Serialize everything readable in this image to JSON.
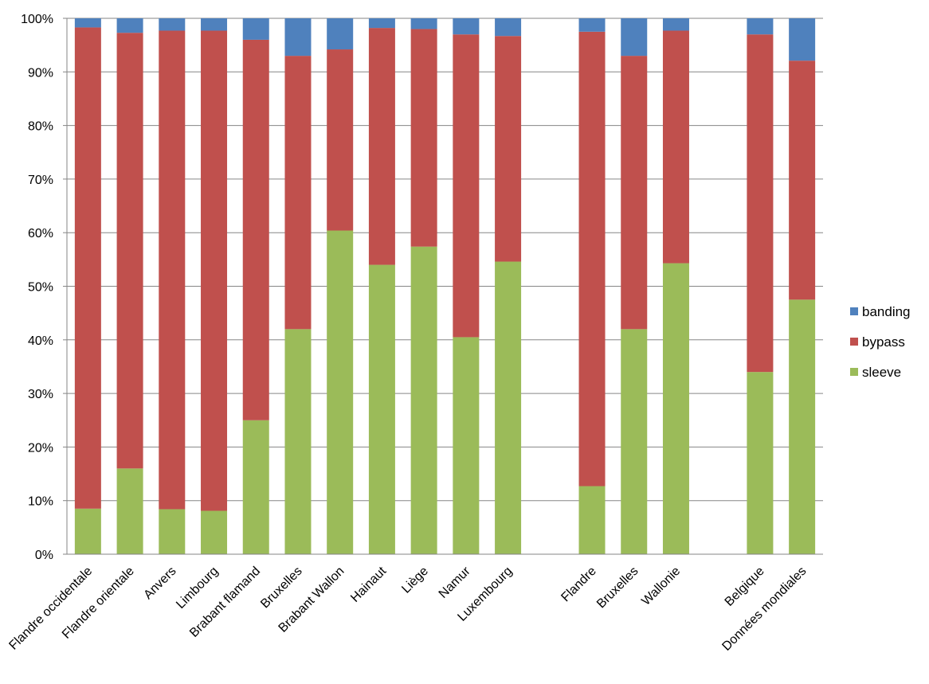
{
  "chart_data": {
    "type": "bar",
    "stacked": true,
    "percent_stacked": true,
    "title": "",
    "xlabel": "",
    "ylabel": "",
    "ylim": [
      0,
      100
    ],
    "y_ticks": [
      "0%",
      "10%",
      "20%",
      "30%",
      "40%",
      "50%",
      "60%",
      "70%",
      "80%",
      "90%",
      "100%"
    ],
    "grid": true,
    "legend_position": "right",
    "category_groups": [
      [
        "Flandre occidentale",
        "Flandre orientale",
        "Anvers",
        "Limbourg",
        "Brabant flamand",
        "Bruxelles",
        "Brabant Wallon",
        "Hainaut",
        "Liège",
        "Namur",
        "Luxembourg"
      ],
      [
        "Flandre",
        "Bruxelles",
        "Wallonie"
      ],
      [
        "Belgique",
        "Données mondiales"
      ]
    ],
    "categories": [
      "Flandre occidentale",
      "Flandre orientale",
      "Anvers",
      "Limbourg",
      "Brabant flamand",
      "Bruxelles",
      "Brabant Wallon",
      "Hainaut",
      "Liège",
      "Namur",
      "Luxembourg",
      "Flandre",
      "Bruxelles",
      "Wallonie",
      "Belgique",
      "Données mondiales"
    ],
    "series": [
      {
        "name": "sleeve",
        "color": "#9BBB59",
        "values": [
          8.5,
          16,
          8.4,
          8.1,
          25,
          42,
          60.4,
          54,
          57.4,
          40.5,
          54.6,
          12.7,
          42,
          54.3,
          34,
          47.5
        ]
      },
      {
        "name": "bypass",
        "color": "#C0504D",
        "values": [
          89.8,
          81.3,
          89.3,
          89.6,
          71,
          51,
          33.8,
          44.2,
          40.6,
          56.5,
          42.1,
          84.8,
          51,
          43.4,
          63,
          44.6
        ]
      },
      {
        "name": "banding",
        "color": "#4F81BD",
        "values": [
          1.7,
          2.7,
          2.3,
          2.3,
          4,
          7,
          5.8,
          1.8,
          2,
          3,
          3.3,
          2.5,
          7,
          2.3,
          3,
          7.9
        ]
      }
    ],
    "legend_order": [
      "banding",
      "bypass",
      "sleeve"
    ]
  }
}
